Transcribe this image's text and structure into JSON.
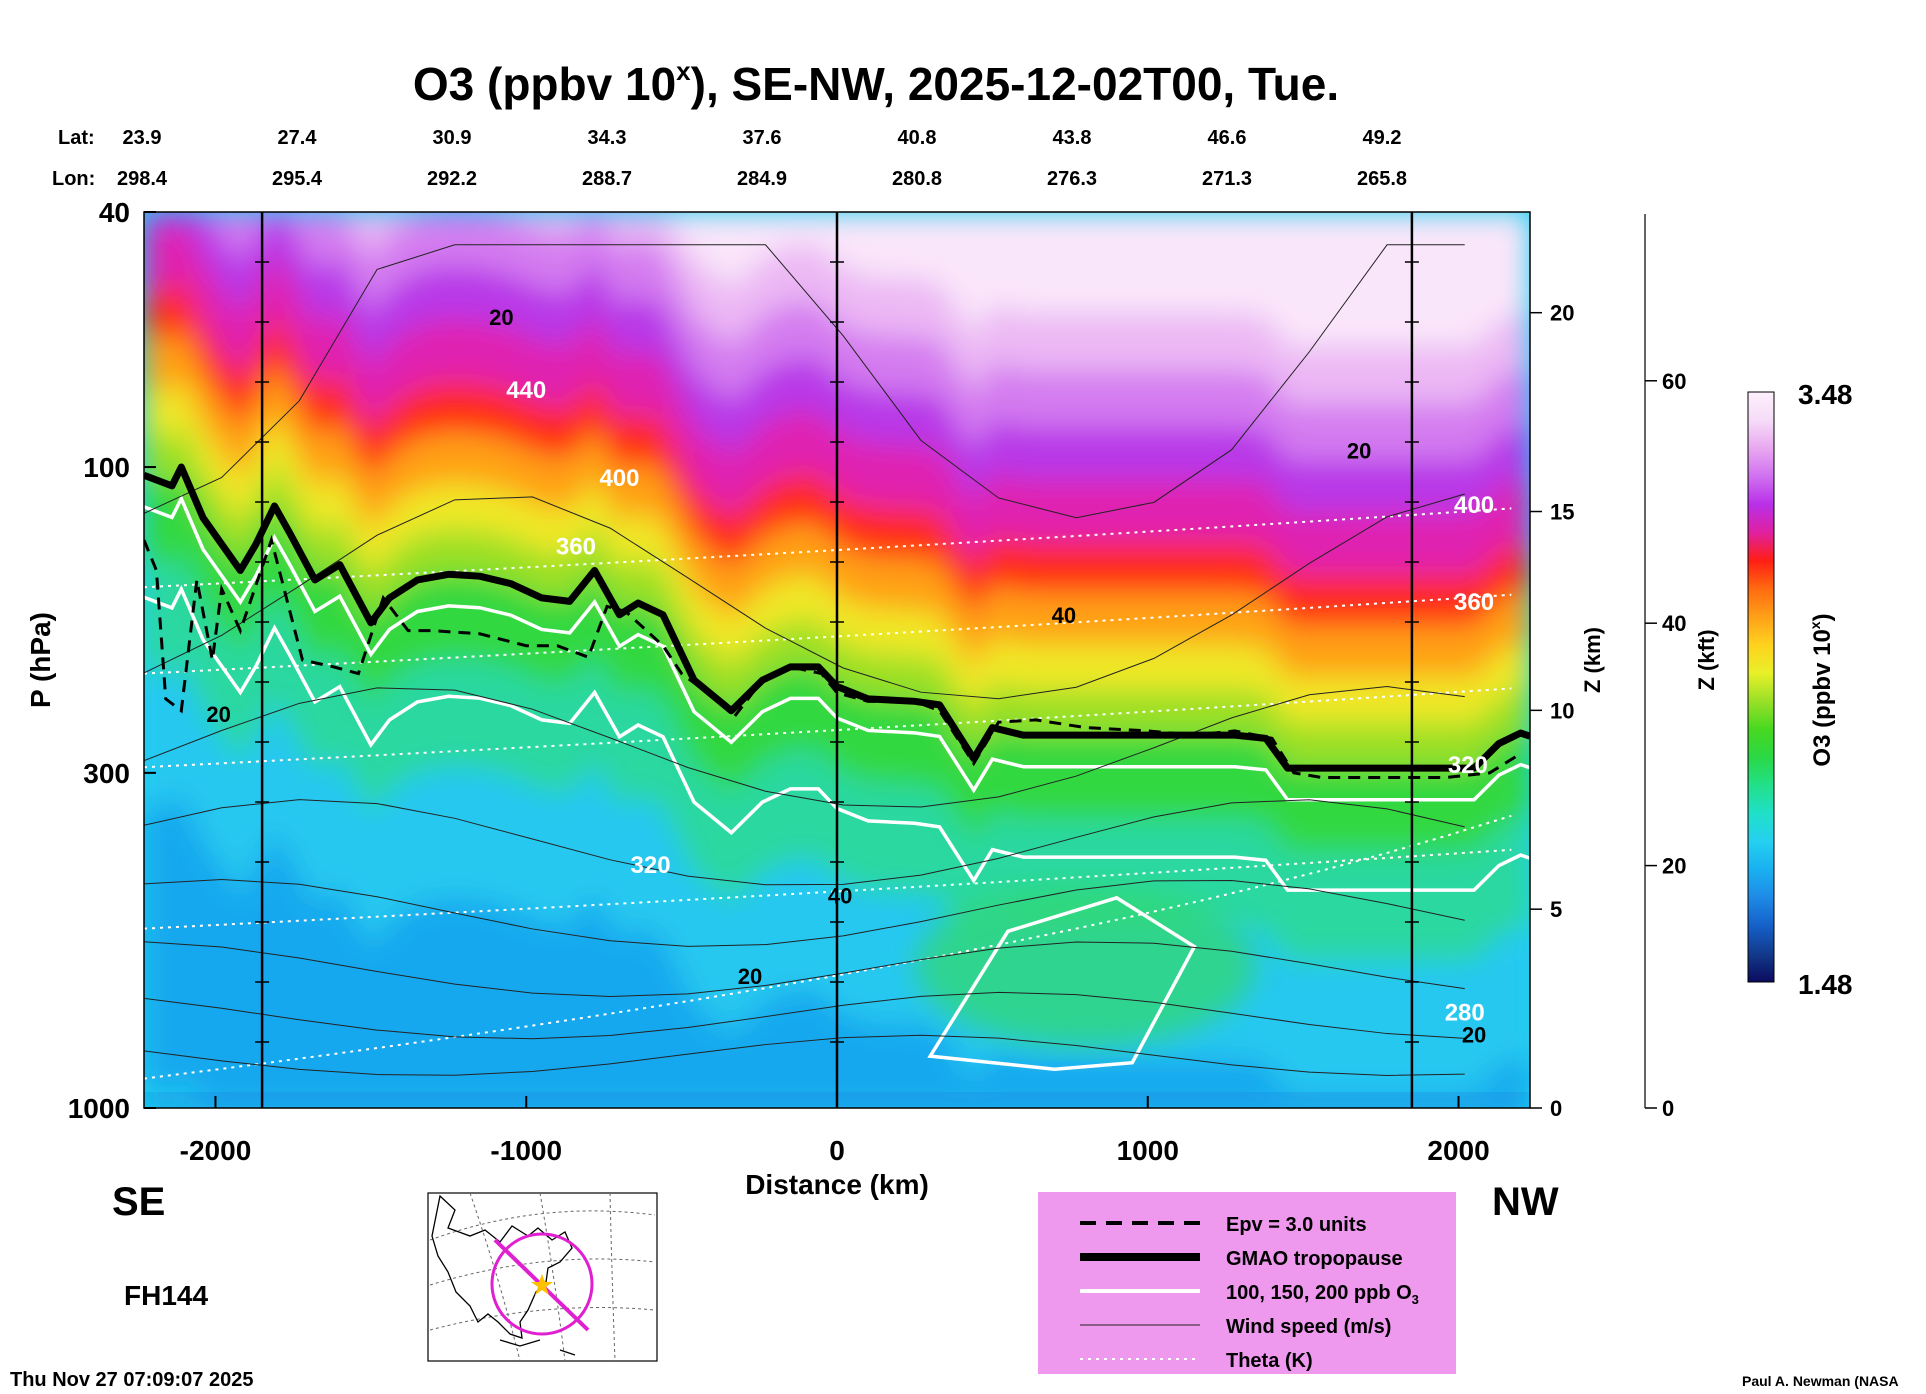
{
  "chart_data": {
    "type": "heatmap",
    "title": "O3 (ppbv 10",
    "title_sup": "x",
    "title_rest": "), SE-NW, 2025-12-02T00, Tue.",
    "lat_label": "Lat:",
    "lon_label": "Lon:",
    "lat_values": [
      "23.9",
      "27.4",
      "30.9",
      "34.3",
      "37.6",
      "40.8",
      "43.8",
      "46.6",
      "49.2"
    ],
    "lon_values": [
      "298.4",
      "295.4",
      "292.2",
      "288.7",
      "284.9",
      "280.8",
      "276.3",
      "271.3",
      "265.8"
    ],
    "x_label": "Distance (km)",
    "x_range": [
      -2230,
      2230
    ],
    "x_ticks": [
      -2000,
      -1000,
      0,
      1000,
      2000
    ],
    "y_label": "P (hPa)",
    "y_scale": "log",
    "y_range": [
      1000,
      40
    ],
    "y_ticks": [
      1000,
      300,
      100,
      40
    ],
    "z_km_label": "Z (km)",
    "z_km_ticks": [
      0,
      5,
      10,
      15,
      20
    ],
    "z_kft_label": "Z (kft)",
    "z_kft_ticks": [
      0,
      20,
      40,
      60
    ],
    "left_label": "SE",
    "right_label": "NW",
    "forecast_hour": "FH144",
    "timestamp": "Thu Nov 27 07:09:07 2025",
    "credit": "Paul A. Newman (NASA",
    "colorbar": {
      "label": "O3 (ppbv 10",
      "label_sup": "x",
      "label_rest": ")",
      "min": "1.48",
      "max": "3.48",
      "colors": [
        "#0b0b5e",
        "#123a8a",
        "#1560c8",
        "#1e8ae6",
        "#19b0f0",
        "#25d0f0",
        "#20e0c8",
        "#22e08a",
        "#2ad845",
        "#48d820",
        "#9ae028",
        "#e8f028",
        "#ffd21e",
        "#ffa018",
        "#ff6a10",
        "#ff1e14",
        "#e020a0",
        "#b830e8",
        "#d070f0",
        "#e8a8f0",
        "#f6dcf8",
        "#fdf0fc"
      ]
    },
    "legend": [
      {
        "style": "dashed",
        "label": "Epv = 3.0 units"
      },
      {
        "style": "thick",
        "label": "GMAO tropopause"
      },
      {
        "style": "white",
        "label": "100, 150, 200 ppb O"
      },
      {
        "style": "thin",
        "label": "Wind speed (m/s)"
      },
      {
        "style": "dotted",
        "label": "Theta (K)"
      }
    ],
    "legend_sub": "3",
    "legend_bg": "#ee99ee",
    "theta_labels": [
      {
        "x": -1000,
        "p": 78,
        "text": "440"
      },
      {
        "x": -700,
        "p": 107,
        "text": "400"
      },
      {
        "x": -840,
        "p": 137,
        "text": "360"
      },
      {
        "x": -600,
        "p": 430,
        "text": "320"
      },
      {
        "x": 2050,
        "p": 118,
        "text": "400"
      },
      {
        "x": 2050,
        "p": 167,
        "text": "360"
      },
      {
        "x": 2030,
        "p": 300,
        "text": "320"
      },
      {
        "x": 2020,
        "p": 730,
        "text": "280"
      }
    ],
    "wind_labels": [
      {
        "x": -1080,
        "p": 60,
        "text": "20"
      },
      {
        "x": 1680,
        "p": 97,
        "text": "20"
      },
      {
        "x": 730,
        "p": 175,
        "text": "40"
      },
      {
        "x": -1990,
        "p": 250,
        "text": "20"
      },
      {
        "x": 10,
        "p": 480,
        "text": "40"
      },
      {
        "x": -280,
        "p": 640,
        "text": "20"
      },
      {
        "x": 2050,
        "p": 790,
        "text": "20"
      }
    ],
    "tropopause": [
      [
        -2230,
        103
      ],
      [
        -2140,
        107
      ],
      [
        -2110,
        100
      ],
      [
        -2040,
        120
      ],
      [
        -1920,
        145
      ],
      [
        -1870,
        132
      ],
      [
        -1810,
        115
      ],
      [
        -1760,
        127
      ],
      [
        -1680,
        150
      ],
      [
        -1600,
        142
      ],
      [
        -1500,
        175
      ],
      [
        -1440,
        160
      ],
      [
        -1350,
        150
      ],
      [
        -1250,
        147
      ],
      [
        -1150,
        148
      ],
      [
        -1050,
        152
      ],
      [
        -950,
        160
      ],
      [
        -860,
        162
      ],
      [
        -780,
        145
      ],
      [
        -700,
        170
      ],
      [
        -640,
        163
      ],
      [
        -560,
        170
      ],
      [
        -460,
        215
      ],
      [
        -340,
        240
      ],
      [
        -240,
        215
      ],
      [
        -150,
        205
      ],
      [
        -60,
        205
      ],
      [
        0,
        220
      ],
      [
        100,
        230
      ],
      [
        250,
        232
      ],
      [
        330,
        235
      ],
      [
        440,
        285
      ],
      [
        500,
        255
      ],
      [
        600,
        262
      ],
      [
        800,
        262
      ],
      [
        1000,
        262
      ],
      [
        1150,
        262
      ],
      [
        1280,
        262
      ],
      [
        1380,
        265
      ],
      [
        1450,
        295
      ],
      [
        1560,
        295
      ],
      [
        1800,
        295
      ],
      [
        2050,
        295
      ],
      [
        2130,
        270
      ],
      [
        2200,
        260
      ],
      [
        2230,
        263
      ]
    ],
    "epv_line": [
      [
        -2230,
        130
      ],
      [
        -2190,
        145
      ],
      [
        -2160,
        230
      ],
      [
        -2110,
        240
      ],
      [
        -2060,
        150
      ],
      [
        -2010,
        200
      ],
      [
        -1980,
        155
      ],
      [
        -1920,
        180
      ],
      [
        -1820,
        130
      ],
      [
        -1720,
        200
      ],
      [
        -1620,
        205
      ],
      [
        -1540,
        210
      ],
      [
        -1460,
        160
      ],
      [
        -1380,
        180
      ],
      [
        -1300,
        180
      ],
      [
        -1150,
        182
      ],
      [
        -1000,
        190
      ],
      [
        -900,
        190
      ],
      [
        -800,
        198
      ],
      [
        -740,
        165
      ],
      [
        -680,
        168
      ],
      [
        -560,
        190
      ],
      [
        -500,
        210
      ],
      [
        -390,
        230
      ],
      [
        -330,
        245
      ],
      [
        -240,
        215
      ],
      [
        -150,
        205
      ],
      [
        -50,
        210
      ],
      [
        0,
        225
      ],
      [
        100,
        232
      ],
      [
        250,
        232
      ],
      [
        330,
        240
      ],
      [
        440,
        290
      ],
      [
        520,
        250
      ],
      [
        640,
        248
      ],
      [
        800,
        255
      ],
      [
        1000,
        258
      ],
      [
        1150,
        262
      ],
      [
        1280,
        258
      ],
      [
        1400,
        265
      ],
      [
        1470,
        300
      ],
      [
        1560,
        305
      ],
      [
        1800,
        305
      ],
      [
        1960,
        305
      ],
      [
        2100,
        300
      ],
      [
        2200,
        280
      ]
    ],
    "map_inset": {
      "track_color": "#e020d0",
      "star_color": "#ffc000"
    }
  }
}
